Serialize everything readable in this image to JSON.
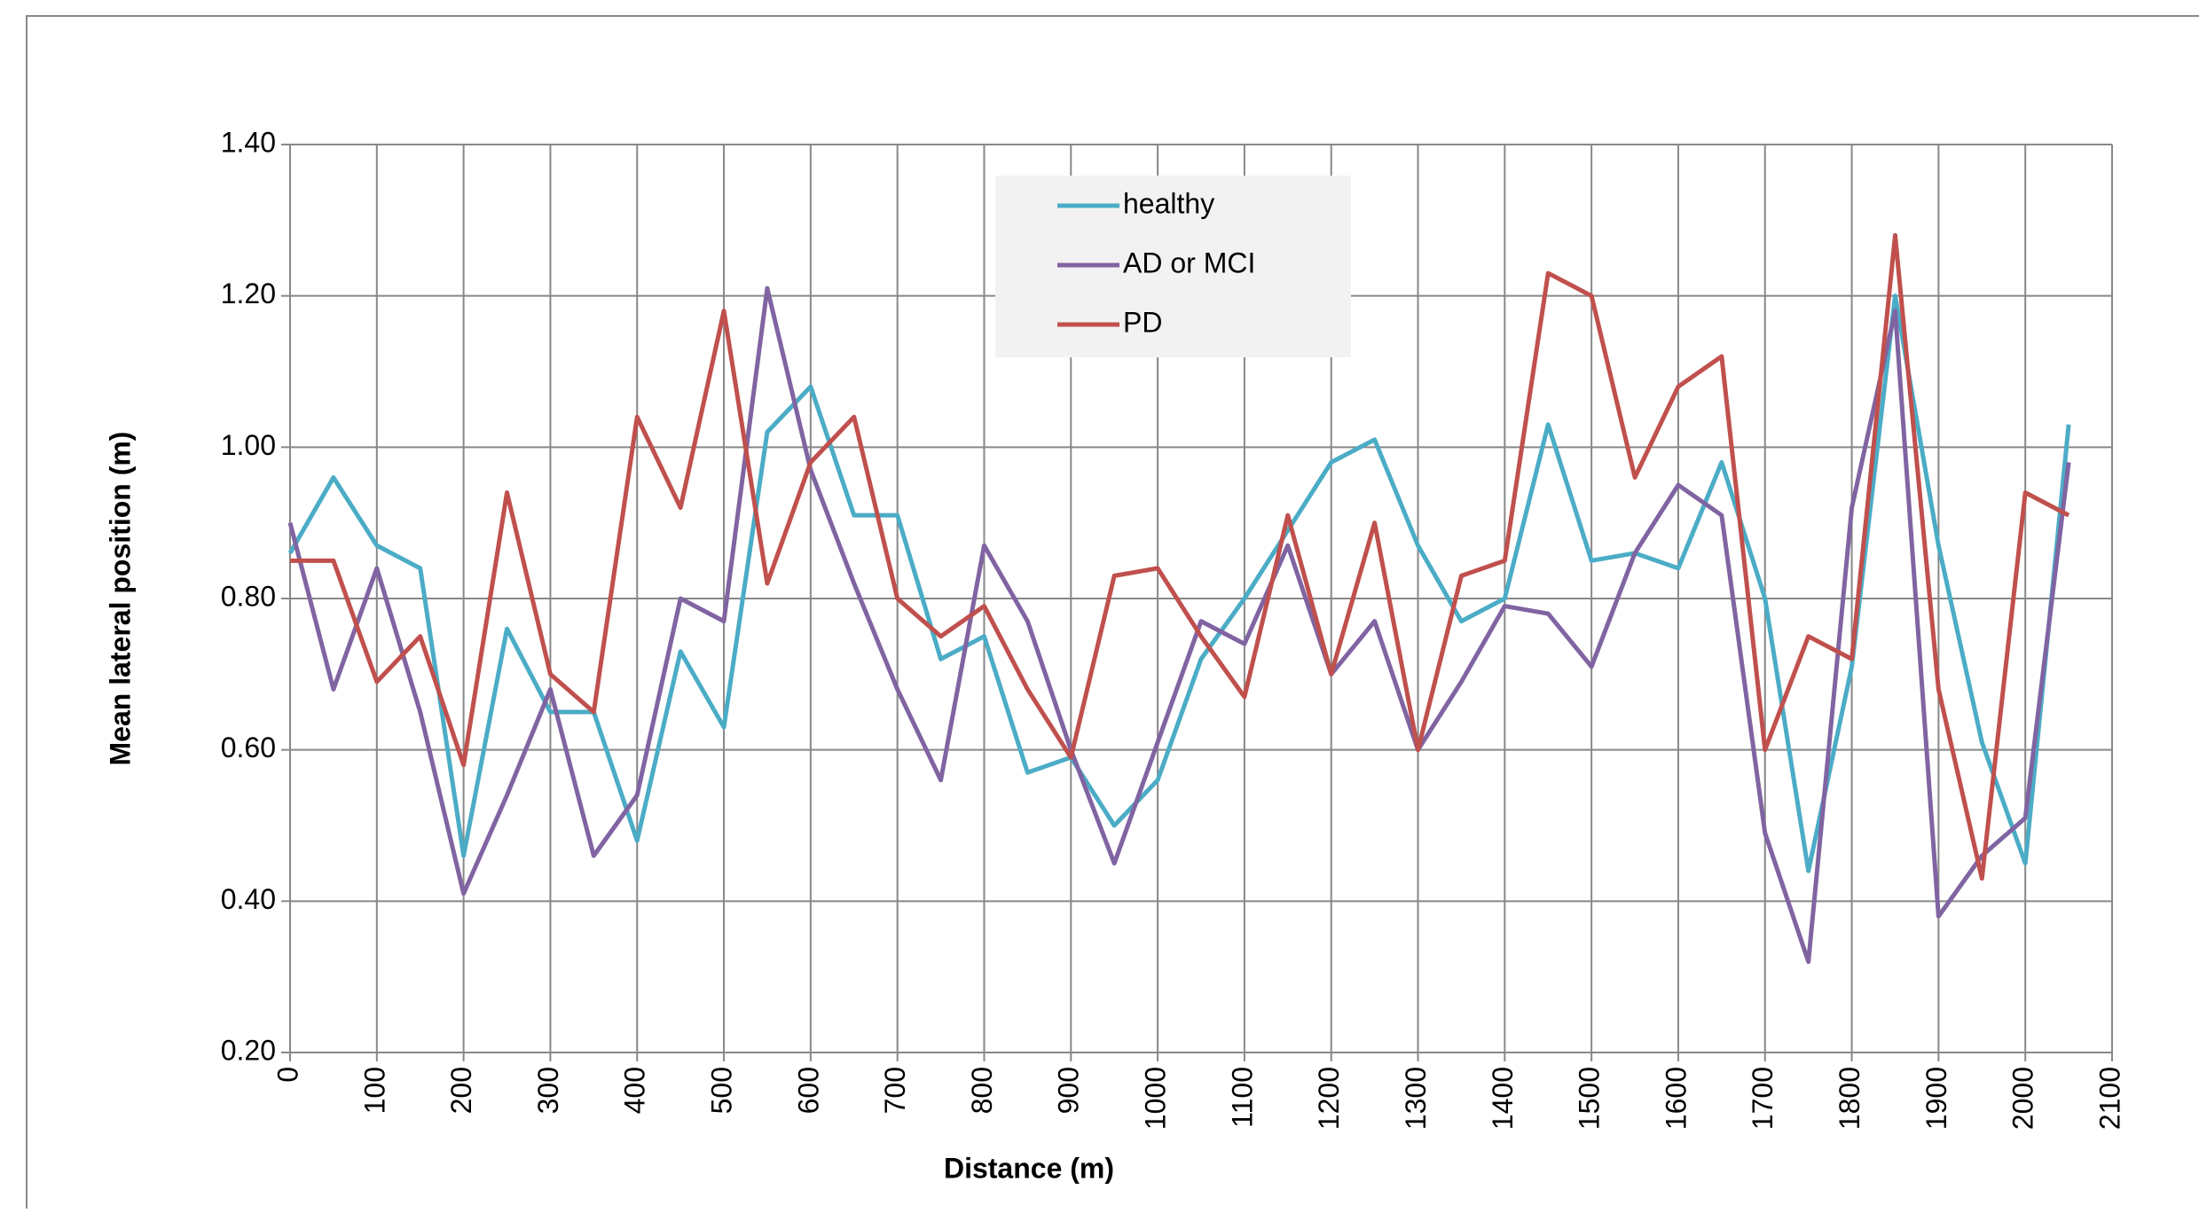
{
  "chart_data": {
    "type": "line",
    "x_label": "Distance (m)",
    "y_label": "Mean lateral position (m)",
    "x": [
      0,
      50,
      100,
      150,
      200,
      250,
      300,
      350,
      400,
      450,
      500,
      550,
      600,
      650,
      700,
      750,
      800,
      850,
      900,
      950,
      1000,
      1050,
      1100,
      1150,
      1200,
      1250,
      1300,
      1350,
      1400,
      1450,
      1500,
      1550,
      1600,
      1650,
      1700,
      1750,
      1800,
      1850,
      1900,
      1950,
      2000,
      2050
    ],
    "series": [
      {
        "name": "healthy",
        "color": "#4bacc6",
        "values": [
          0.86,
          0.96,
          0.87,
          0.84,
          0.46,
          0.76,
          0.65,
          0.65,
          0.48,
          0.73,
          0.63,
          1.02,
          1.08,
          0.91,
          0.91,
          0.72,
          0.75,
          0.57,
          0.59,
          0.5,
          0.56,
          0.72,
          0.8,
          0.89,
          0.98,
          1.01,
          0.87,
          0.77,
          0.8,
          1.03,
          0.85,
          0.86,
          0.84,
          0.98,
          0.8,
          0.44,
          0.71,
          1.2,
          0.87,
          0.61,
          0.45,
          1.03
        ]
      },
      {
        "name": "AD or MCI",
        "color": "#8064a2",
        "values": [
          0.9,
          0.68,
          0.84,
          0.65,
          0.41,
          0.54,
          0.68,
          0.46,
          0.54,
          0.8,
          0.77,
          1.21,
          0.97,
          0.82,
          0.68,
          0.56,
          0.87,
          0.77,
          0.6,
          0.45,
          0.61,
          0.77,
          0.74,
          0.87,
          0.7,
          0.77,
          0.6,
          0.69,
          0.79,
          0.78,
          0.71,
          0.86,
          0.95,
          0.91,
          0.49,
          0.32,
          0.92,
          1.18,
          0.38,
          0.46,
          0.51,
          0.98
        ]
      },
      {
        "name": "PD",
        "color": "#c0504d",
        "values": [
          0.85,
          0.85,
          0.69,
          0.75,
          0.58,
          0.94,
          0.7,
          0.65,
          1.04,
          0.92,
          1.18,
          0.82,
          0.98,
          1.04,
          0.8,
          0.75,
          0.79,
          0.68,
          0.59,
          0.83,
          0.84,
          0.75,
          0.67,
          0.91,
          0.7,
          0.9,
          0.6,
          0.83,
          0.85,
          1.23,
          1.2,
          0.96,
          1.08,
          1.12,
          0.6,
          0.75,
          0.72,
          1.28,
          0.68,
          0.43,
          0.94,
          0.91
        ]
      }
    ],
    "xlim": [
      0,
      2100
    ],
    "xticks": [
      0,
      100,
      200,
      300,
      400,
      500,
      600,
      700,
      800,
      900,
      1000,
      1100,
      1200,
      1300,
      1400,
      1500,
      1600,
      1700,
      1800,
      1900,
      2000,
      2100
    ],
    "ylim": [
      0.2,
      1.4
    ],
    "yticks": [
      {
        "value": 0.2,
        "label": "0.20"
      },
      {
        "value": 0.4,
        "label": "0.40"
      },
      {
        "value": 0.6,
        "label": "0.60"
      },
      {
        "value": 0.8,
        "label": "0.80"
      },
      {
        "value": 1.0,
        "label": "1.00"
      },
      {
        "value": 1.2,
        "label": "1.20"
      },
      {
        "value": 1.4,
        "label": "1.40"
      }
    ],
    "grid": true
  }
}
